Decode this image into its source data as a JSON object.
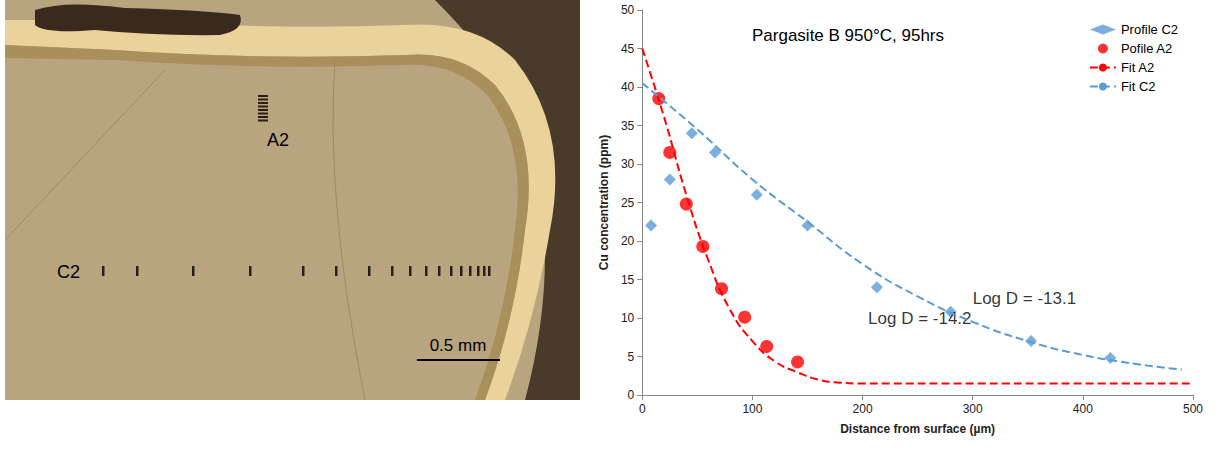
{
  "chart_data": {
    "type": "scatter",
    "title": "Pargasite B 950°C, 95hrs",
    "x_label": "Distance from surface (µm)",
    "y_label": "Cu concentration (ppm)",
    "xlim": [
      0,
      500
    ],
    "xticks": [
      0,
      100,
      200,
      300,
      400,
      500
    ],
    "ylim": [
      0,
      50
    ],
    "yticks": [
      0,
      5,
      10,
      15,
      20,
      25,
      30,
      35,
      40,
      45,
      50
    ],
    "grid": false,
    "legend": "top-right",
    "series": [
      {
        "name": "Profile C2",
        "type": "scatter",
        "color": "#5b9bd5",
        "marker": "diamond",
        "x": [
          8,
          25,
          45,
          66,
          104,
          150,
          213,
          280,
          353,
          425
        ],
        "values": [
          22,
          28,
          34,
          31.5,
          26,
          22,
          14,
          10.8,
          7,
          4.8
        ]
      },
      {
        "name": "Pofile A2",
        "type": "scatter",
        "color": "#ff0000",
        "marker": "circle",
        "x": [
          15,
          25,
          40,
          55,
          72,
          93,
          113,
          141
        ],
        "values": [
          38.5,
          31.5,
          24.8,
          19.3,
          13.8,
          10.1,
          6.3,
          4.3
        ]
      },
      {
        "name": "Fit A2",
        "type": "line",
        "color": "#ff0000",
        "line_style": "dashed",
        "x": [
          0,
          20,
          40,
          60,
          80,
          100,
          120,
          140,
          160,
          180,
          200,
          300,
          400,
          500
        ],
        "values": [
          45,
          36,
          26,
          17.5,
          11,
          7,
          4.4,
          3,
          2,
          1.6,
          1.5,
          1.5,
          1.5,
          1.5
        ]
      },
      {
        "name": "Fit C2",
        "type": "line",
        "color": "#5b9bd5",
        "line_style": "dashed",
        "x": [
          0,
          50,
          100,
          150,
          200,
          250,
          300,
          350,
          400,
          450,
          490
        ],
        "values": [
          40.5,
          34.5,
          28,
          22.5,
          17,
          12.8,
          9.5,
          7,
          5.2,
          4,
          3.3
        ]
      }
    ],
    "annotations": [
      {
        "text": "Log D = -14.2",
        "x": 205,
        "y": 10
      },
      {
        "text": "Log D = -13.1",
        "x": 300,
        "y": 12.5
      }
    ]
  },
  "image": {
    "labels": [
      "A2",
      "C2"
    ],
    "scale_bar": "0.5 mm"
  }
}
